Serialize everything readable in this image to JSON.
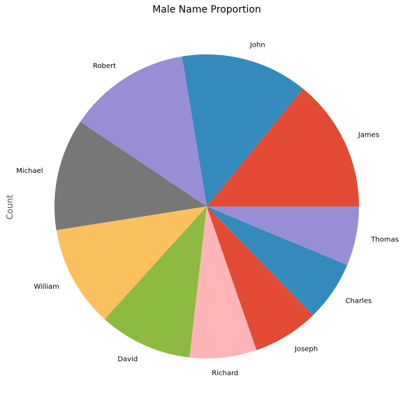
{
  "chart_data": {
    "type": "pie",
    "title": "Male Name Proportion",
    "ylabel": "Count",
    "start_angle_deg": 0,
    "direction": "counterclockwise",
    "slices": [
      {
        "label": "James",
        "value": 14.1,
        "color": "#E24A33"
      },
      {
        "label": "John",
        "value": 13.5,
        "color": "#348ABD"
      },
      {
        "label": "Robert",
        "value": 13.0,
        "color": "#988ED5"
      },
      {
        "label": "Michael",
        "value": 11.9,
        "color": "#777777"
      },
      {
        "label": "William",
        "value": 10.8,
        "color": "#FBC15E"
      },
      {
        "label": "David",
        "value": 9.9,
        "color": "#8EBA42"
      },
      {
        "label": "Richard",
        "value": 7.1,
        "color": "#FFB5B8"
      },
      {
        "label": "Joseph",
        "value": 7.0,
        "color": "#E24A33"
      },
      {
        "label": "Charles",
        "value": 6.4,
        "color": "#348ABD"
      },
      {
        "label": "Thomas",
        "value": 6.3,
        "color": "#988ED5"
      }
    ]
  }
}
